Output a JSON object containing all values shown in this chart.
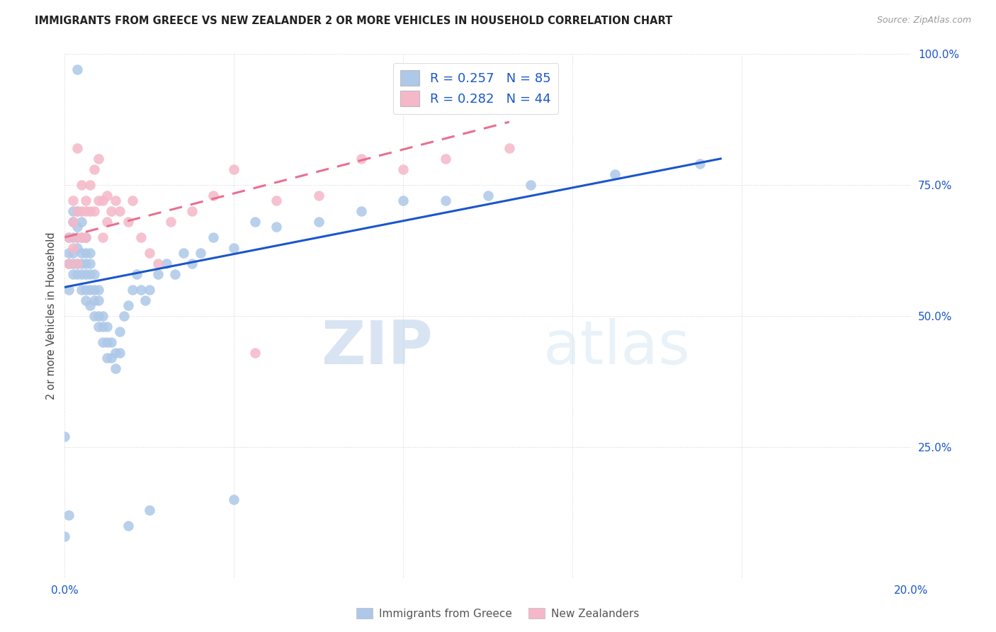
{
  "title": "IMMIGRANTS FROM GREECE VS NEW ZEALANDER 2 OR MORE VEHICLES IN HOUSEHOLD CORRELATION CHART",
  "source": "Source: ZipAtlas.com",
  "ylabel": "2 or more Vehicles in Household",
  "xmin": 0.0,
  "xmax": 0.2,
  "ymin": 0.0,
  "ymax": 1.0,
  "xtick_vals": [
    0.0,
    0.04,
    0.08,
    0.12,
    0.16,
    0.2
  ],
  "xtick_labels": [
    "0.0%",
    "",
    "",
    "",
    "",
    "20.0%"
  ],
  "ytick_vals": [
    0.0,
    0.25,
    0.5,
    0.75,
    1.0
  ],
  "ytick_labels": [
    "",
    "25.0%",
    "50.0%",
    "75.0%",
    "100.0%"
  ],
  "legend_R1": "0.257",
  "legend_N1": "85",
  "legend_R2": "0.282",
  "legend_N2": "44",
  "blue_fill": "#adc8e8",
  "pink_fill": "#f5b8c8",
  "blue_line_color": "#1a56cc",
  "pink_line_color": "#e87090",
  "watermark_zip": "ZIP",
  "watermark_atlas": "atlas",
  "blue_x": [
    0.0,
    0.001,
    0.001,
    0.001,
    0.001,
    0.002,
    0.002,
    0.002,
    0.002,
    0.002,
    0.002,
    0.003,
    0.003,
    0.003,
    0.003,
    0.003,
    0.003,
    0.004,
    0.004,
    0.004,
    0.004,
    0.004,
    0.004,
    0.005,
    0.005,
    0.005,
    0.005,
    0.005,
    0.006,
    0.006,
    0.006,
    0.006,
    0.006,
    0.007,
    0.007,
    0.007,
    0.007,
    0.008,
    0.008,
    0.008,
    0.008,
    0.009,
    0.009,
    0.009,
    0.01,
    0.01,
    0.01,
    0.011,
    0.011,
    0.012,
    0.012,
    0.013,
    0.013,
    0.014,
    0.015,
    0.016,
    0.017,
    0.018,
    0.019,
    0.02,
    0.022,
    0.024,
    0.026,
    0.028,
    0.03,
    0.032,
    0.035,
    0.04,
    0.045,
    0.05,
    0.06,
    0.07,
    0.08,
    0.09,
    0.1,
    0.11,
    0.13,
    0.15,
    0.003,
    0.0,
    0.001,
    0.015,
    0.02,
    0.04,
    0.005
  ],
  "blue_y": [
    0.27,
    0.55,
    0.6,
    0.62,
    0.65,
    0.58,
    0.6,
    0.62,
    0.65,
    0.68,
    0.7,
    0.58,
    0.6,
    0.63,
    0.65,
    0.67,
    0.7,
    0.55,
    0.58,
    0.6,
    0.62,
    0.65,
    0.68,
    0.55,
    0.58,
    0.6,
    0.62,
    0.65,
    0.52,
    0.55,
    0.58,
    0.6,
    0.62,
    0.5,
    0.53,
    0.55,
    0.58,
    0.48,
    0.5,
    0.53,
    0.55,
    0.45,
    0.48,
    0.5,
    0.42,
    0.45,
    0.48,
    0.42,
    0.45,
    0.4,
    0.43,
    0.43,
    0.47,
    0.5,
    0.52,
    0.55,
    0.58,
    0.55,
    0.53,
    0.55,
    0.58,
    0.6,
    0.58,
    0.62,
    0.6,
    0.62,
    0.65,
    0.63,
    0.68,
    0.67,
    0.68,
    0.7,
    0.72,
    0.72,
    0.73,
    0.75,
    0.77,
    0.79,
    0.97,
    0.08,
    0.12,
    0.1,
    0.13,
    0.15,
    0.53
  ],
  "pink_x": [
    0.001,
    0.001,
    0.002,
    0.002,
    0.002,
    0.003,
    0.003,
    0.003,
    0.004,
    0.004,
    0.004,
    0.005,
    0.005,
    0.005,
    0.006,
    0.006,
    0.007,
    0.007,
    0.008,
    0.008,
    0.009,
    0.009,
    0.01,
    0.01,
    0.011,
    0.012,
    0.013,
    0.015,
    0.016,
    0.018,
    0.02,
    0.022,
    0.025,
    0.03,
    0.035,
    0.04,
    0.05,
    0.06,
    0.07,
    0.08,
    0.09,
    0.105,
    0.003,
    0.045
  ],
  "pink_y": [
    0.6,
    0.65,
    0.63,
    0.68,
    0.72,
    0.6,
    0.65,
    0.7,
    0.65,
    0.7,
    0.75,
    0.65,
    0.7,
    0.72,
    0.7,
    0.75,
    0.7,
    0.78,
    0.72,
    0.8,
    0.65,
    0.72,
    0.68,
    0.73,
    0.7,
    0.72,
    0.7,
    0.68,
    0.72,
    0.65,
    0.62,
    0.6,
    0.68,
    0.7,
    0.73,
    0.78,
    0.72,
    0.73,
    0.8,
    0.78,
    0.8,
    0.82,
    0.82,
    0.43
  ],
  "blue_line_x0": 0.0,
  "blue_line_x1": 0.155,
  "blue_line_y0": 0.555,
  "blue_line_y1": 0.8,
  "pink_line_x0": 0.0,
  "pink_line_x1": 0.105,
  "pink_line_y0": 0.65,
  "pink_line_y1": 0.87
}
